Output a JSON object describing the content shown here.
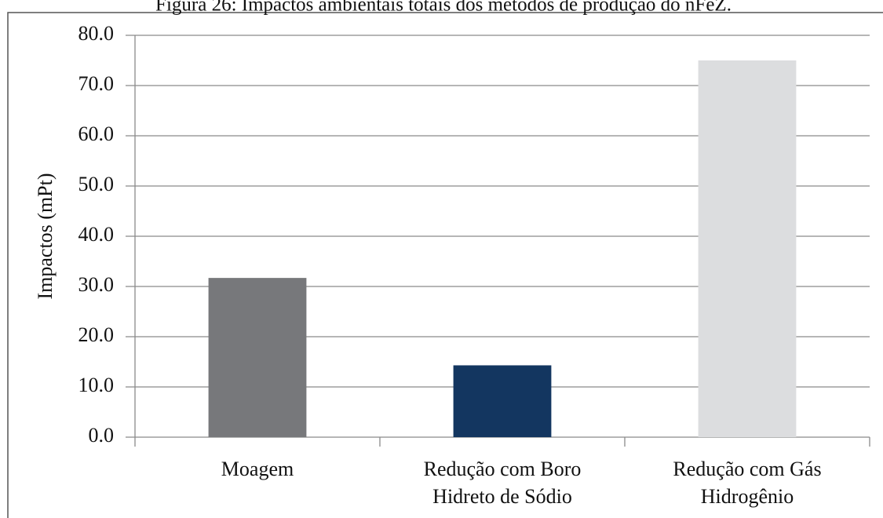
{
  "chart_data": {
    "type": "bar",
    "title": "Figura 26: Impactos ambientais totais dos métodos de produção do nFeZ.",
    "y_label": "Impactos (mPt)",
    "categories": [
      [
        "Moagem"
      ],
      [
        "Redução com Boro",
        "Hidreto de Sódio"
      ],
      [
        "Redução com Gás",
        "Hidrogênio"
      ]
    ],
    "values": [
      31.7,
      14.3,
      75.0
    ],
    "colors": [
      "#77787b",
      "#133660",
      "#dcdddf"
    ],
    "ylim": [
      0,
      80
    ],
    "yticks": [
      {
        "value": 0,
        "label": "0.0"
      },
      {
        "value": 10,
        "label": "10.0"
      },
      {
        "value": 20,
        "label": "20.0"
      },
      {
        "value": 30,
        "label": "30.0"
      },
      {
        "value": 40,
        "label": "40.0"
      },
      {
        "value": 50,
        "label": "50.0"
      },
      {
        "value": 60,
        "label": "60.0"
      },
      {
        "value": 70,
        "label": "70.0"
      },
      {
        "value": 80,
        "label": "80.0"
      }
    ],
    "grid": true
  }
}
